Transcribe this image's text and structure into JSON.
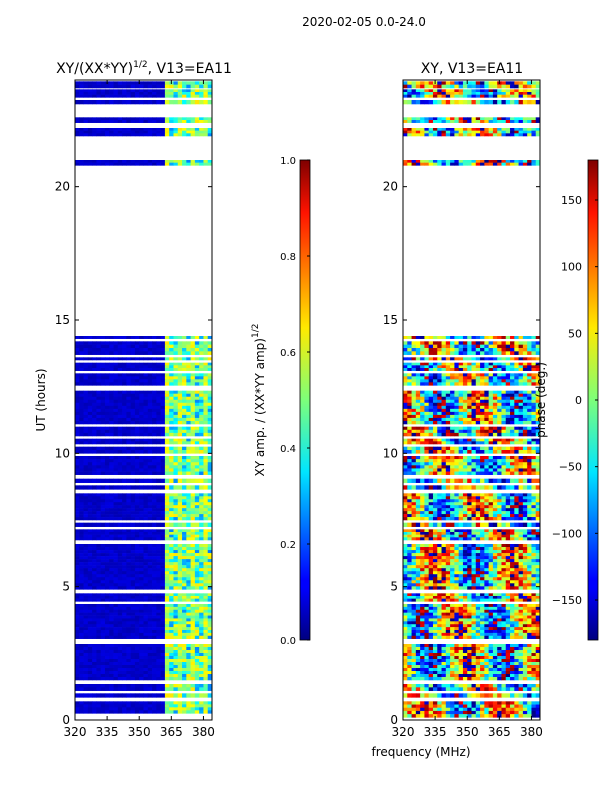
{
  "figure": {
    "suptitle": "2020-02-05 0.0-24.0",
    "xlabel": "frequency (MHz)"
  },
  "chart_data": [
    {
      "type": "heatmap",
      "title_main": "XY/(XX*YY)",
      "title_sup": "1/2",
      "title_rest": ", V13=EA11",
      "xlabel": "",
      "ylabel": "UT (hours)",
      "xlim": [
        320,
        384
      ],
      "ylim": [
        0,
        24
      ],
      "xticks": [
        "320",
        "335",
        "350",
        "365",
        "380"
      ],
      "xtick_values": [
        320,
        335,
        350,
        365,
        380
      ],
      "yticks": [
        "0",
        "5",
        "10",
        "15",
        "20"
      ],
      "ytick_values": [
        0,
        5,
        10,
        15,
        20
      ],
      "data_row_ranges_hours": [
        [
          0.25,
          0.7
        ],
        [
          0.85,
          1.0
        ],
        [
          1.1,
          1.35
        ],
        [
          1.5,
          2.85
        ],
        [
          3.05,
          4.35
        ],
        [
          4.45,
          4.75
        ],
        [
          4.9,
          6.6
        ],
        [
          6.75,
          7.15
        ],
        [
          7.25,
          7.4
        ],
        [
          7.5,
          8.5
        ],
        [
          8.65,
          8.8
        ],
        [
          8.9,
          9.05
        ],
        [
          9.2,
          9.9
        ],
        [
          10.0,
          10.25
        ],
        [
          10.35,
          10.55
        ],
        [
          10.65,
          11.0
        ],
        [
          11.1,
          12.35
        ],
        [
          12.55,
          13.0
        ],
        [
          13.1,
          13.4
        ],
        [
          13.5,
          13.6
        ],
        [
          13.7,
          14.2
        ],
        [
          14.3,
          14.4
        ],
        [
          20.8,
          21.0
        ],
        [
          21.9,
          22.2
        ],
        [
          22.4,
          22.6
        ],
        [
          23.1,
          23.25
        ],
        [
          23.35,
          23.65
        ],
        [
          23.7,
          23.95
        ]
      ],
      "bright_band_MHz": [
        362,
        384
      ],
      "colorbar": {
        "label_main": "XY amp. / (XX*YY amp)",
        "label_sup": "1/2",
        "min": 0.0,
        "max": 1.0,
        "ticks": [
          "0.0",
          "0.2",
          "0.4",
          "0.6",
          "0.8",
          "1.0"
        ],
        "tick_values": [
          0.0,
          0.2,
          0.4,
          0.6,
          0.8,
          1.0
        ],
        "colormap": "jet"
      }
    },
    {
      "type": "heatmap",
      "title": "XY, V13=EA11",
      "xlabel": "",
      "ylabel": "",
      "xlim": [
        320,
        384
      ],
      "ylim": [
        0,
        24
      ],
      "xticks": [
        "320",
        "335",
        "350",
        "365",
        "380"
      ],
      "xtick_values": [
        320,
        335,
        350,
        365,
        380
      ],
      "yticks": [
        "0",
        "5",
        "10",
        "15",
        "20"
      ],
      "ytick_values": [
        0,
        5,
        10,
        15,
        20
      ],
      "data_row_ranges_hours": [
        [
          0.1,
          0.7
        ],
        [
          0.85,
          1.0
        ],
        [
          1.1,
          1.35
        ],
        [
          1.5,
          2.85
        ],
        [
          3.05,
          4.35
        ],
        [
          4.45,
          4.75
        ],
        [
          4.9,
          6.6
        ],
        [
          6.75,
          7.15
        ],
        [
          7.25,
          7.4
        ],
        [
          7.5,
          8.5
        ],
        [
          8.65,
          8.8
        ],
        [
          8.9,
          9.05
        ],
        [
          9.2,
          9.9
        ],
        [
          10.0,
          10.25
        ],
        [
          10.35,
          10.55
        ],
        [
          10.65,
          11.0
        ],
        [
          11.1,
          12.35
        ],
        [
          12.55,
          13.0
        ],
        [
          13.1,
          13.4
        ],
        [
          13.5,
          13.6
        ],
        [
          13.7,
          14.2
        ],
        [
          14.3,
          14.4
        ],
        [
          20.8,
          21.0
        ],
        [
          21.9,
          22.2
        ],
        [
          22.4,
          22.6
        ],
        [
          23.1,
          23.25
        ],
        [
          23.35,
          23.65
        ],
        [
          23.7,
          23.95
        ]
      ],
      "colorbar": {
        "label": "phase (deg.)",
        "min": -180,
        "max": 180,
        "ticks": [
          "−150",
          "−100",
          "−50",
          "0",
          "50",
          "100",
          "150"
        ],
        "tick_values": [
          -150,
          -100,
          -50,
          0,
          50,
          100,
          150
        ],
        "colormap": "jet"
      }
    }
  ]
}
